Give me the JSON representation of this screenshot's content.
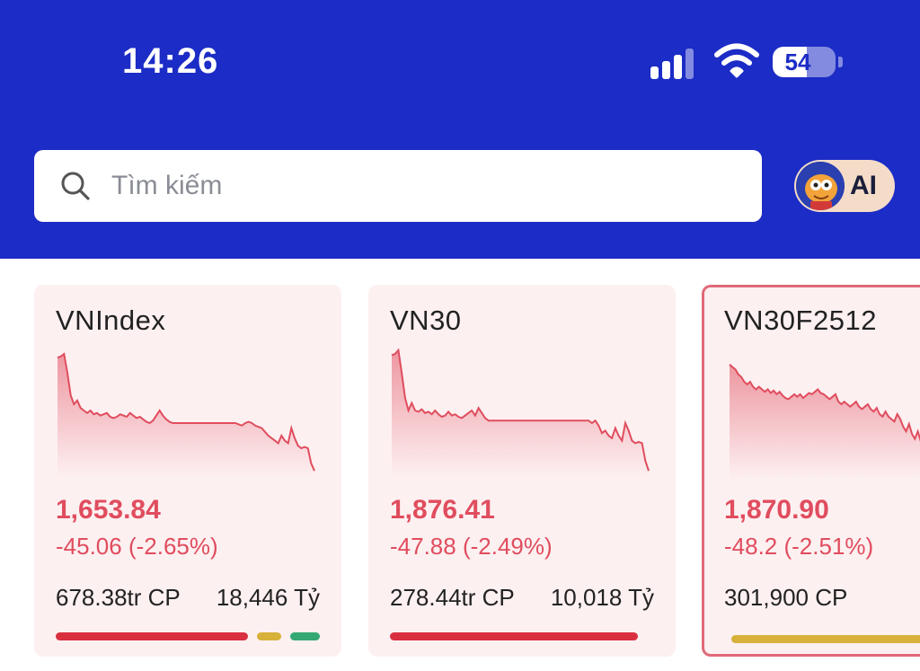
{
  "status_bar": {
    "time": "14:26",
    "battery_percent": "54",
    "battery_level": 0.54
  },
  "search": {
    "placeholder": "Tìm kiếm"
  },
  "ai_button": {
    "label": "AI"
  },
  "colors": {
    "header_bg": "#1c2cc6",
    "down": "#e04d5e",
    "breadth_down": "#d93040",
    "breadth_ref": "#d7b13a",
    "breadth_up": "#33a872"
  },
  "indices": [
    {
      "name": "VNIndex",
      "price": "1,653.84",
      "change": "-45.06 (-2.65%)",
      "volume": "678.38tr CP",
      "value": "18,446 Tỷ",
      "breadth": [
        {
          "type": "down",
          "ratio": 0.78
        },
        {
          "type": "ref",
          "ratio": 0.1
        },
        {
          "type": "up",
          "ratio": 0.12
        }
      ],
      "spark": [
        0.92,
        0.93,
        0.95,
        0.8,
        0.62,
        0.55,
        0.58,
        0.52,
        0.5,
        0.48,
        0.5,
        0.47,
        0.48,
        0.46,
        0.47,
        0.48,
        0.45,
        0.44,
        0.45,
        0.47,
        0.46,
        0.45,
        0.48,
        0.46,
        0.44,
        0.45,
        0.43,
        0.41,
        0.4,
        0.42,
        0.46,
        0.5,
        0.46,
        0.43,
        0.41,
        0.4,
        0.4,
        0.4,
        0.4,
        0.4,
        0.4,
        0.4,
        0.4,
        0.4,
        0.4,
        0.4,
        0.4,
        0.4,
        0.4,
        0.4,
        0.4,
        0.4,
        0.4,
        0.4,
        0.4,
        0.39,
        0.38,
        0.4,
        0.41,
        0.4,
        0.38,
        0.37,
        0.36,
        0.33,
        0.3,
        0.28,
        0.26,
        0.24,
        0.3,
        0.26,
        0.24,
        0.36,
        0.28,
        0.22,
        0.2,
        0.21,
        0.2,
        0.08,
        0.02
      ]
    },
    {
      "name": "VN30",
      "price": "1,876.41",
      "change": "-47.88 (-2.49%)",
      "volume": "278.44tr CP",
      "value": "10,018 Tỷ",
      "breadth": [
        {
          "type": "down",
          "ratio": 1.0
        }
      ],
      "spark": [
        0.94,
        0.95,
        0.98,
        0.8,
        0.6,
        0.5,
        0.56,
        0.5,
        0.49,
        0.51,
        0.48,
        0.49,
        0.47,
        0.5,
        0.47,
        0.45,
        0.46,
        0.49,
        0.46,
        0.47,
        0.45,
        0.44,
        0.46,
        0.48,
        0.5,
        0.46,
        0.52,
        0.48,
        0.44,
        0.42,
        0.42,
        0.42,
        0.42,
        0.42,
        0.42,
        0.42,
        0.42,
        0.42,
        0.42,
        0.42,
        0.42,
        0.42,
        0.42,
        0.42,
        0.42,
        0.42,
        0.42,
        0.42,
        0.42,
        0.42,
        0.42,
        0.42,
        0.42,
        0.42,
        0.42,
        0.42,
        0.42,
        0.42,
        0.42,
        0.42,
        0.4,
        0.42,
        0.38,
        0.32,
        0.34,
        0.3,
        0.28,
        0.36,
        0.3,
        0.26,
        0.4,
        0.34,
        0.26,
        0.24,
        0.25,
        0.24,
        0.1,
        0.02
      ]
    },
    {
      "name": "VN30F2512",
      "price": "1,870.90",
      "change": "-48.2 (-2.51%)",
      "volume": "301,900 CP",
      "value": "",
      "breadth": [
        {
          "type": "ref",
          "ratio": 1.0
        }
      ],
      "spark": [
        0.9,
        0.88,
        0.86,
        0.82,
        0.8,
        0.76,
        0.74,
        0.76,
        0.72,
        0.7,
        0.72,
        0.7,
        0.68,
        0.7,
        0.67,
        0.69,
        0.66,
        0.68,
        0.65,
        0.63,
        0.62,
        0.64,
        0.66,
        0.64,
        0.66,
        0.63,
        0.65,
        0.67,
        0.66,
        0.68,
        0.7,
        0.67,
        0.66,
        0.64,
        0.62,
        0.64,
        0.66,
        0.6,
        0.58,
        0.6,
        0.58,
        0.56,
        0.58,
        0.6,
        0.56,
        0.54,
        0.56,
        0.58,
        0.54,
        0.52,
        0.55,
        0.5,
        0.48,
        0.52,
        0.48,
        0.46,
        0.44,
        0.5,
        0.46,
        0.4,
        0.36,
        0.42,
        0.34,
        0.3,
        0.36,
        0.28,
        0.26,
        0.2,
        0.1,
        0.02
      ]
    }
  ]
}
